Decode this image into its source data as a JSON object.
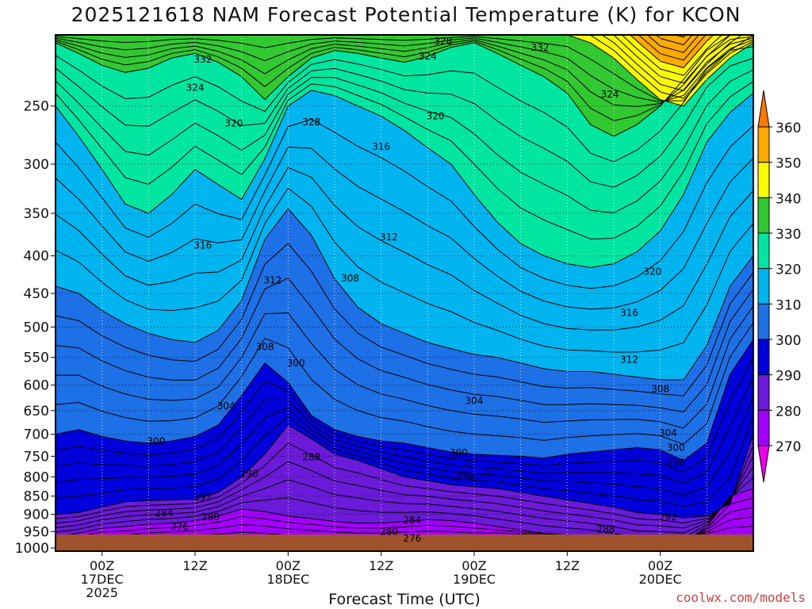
{
  "chart_data": {
    "type": "heatmap",
    "title": "2025121618 NAM Forecast Potential Temperature (K) for KCON",
    "xlabel": "Forecast Time (UTC)",
    "ylabel": "",
    "units": "K",
    "x_range_hours": [
      -6,
      84
    ],
    "y_axis_scale": "log",
    "y_ticks": [
      250,
      300,
      350,
      400,
      450,
      500,
      550,
      600,
      650,
      700,
      750,
      800,
      850,
      900,
      950,
      1000
    ],
    "y_range": [
      200,
      1010
    ],
    "x_ticks": [
      {
        "hour": 0,
        "lines": [
          "00Z",
          "17DEC",
          "2025"
        ]
      },
      {
        "hour": 12,
        "lines": [
          "12Z"
        ]
      },
      {
        "hour": 24,
        "lines": [
          "00Z",
          "18DEC"
        ]
      },
      {
        "hour": 36,
        "lines": [
          "12Z"
        ]
      },
      {
        "hour": 48,
        "lines": [
          "00Z",
          "19DEC"
        ]
      },
      {
        "hour": 60,
        "lines": [
          "12Z"
        ]
      },
      {
        "hour": 72,
        "lines": [
          "00Z",
          "20DEC"
        ]
      }
    ],
    "colorbar": {
      "levels": [
        270,
        280,
        290,
        300,
        310,
        320,
        330,
        340,
        350,
        360
      ],
      "colors": [
        "#ee00ee",
        "#a400ff",
        "#6a1ad8",
        "#0000dd",
        "#1e70e6",
        "#00b4f0",
        "#00e6a0",
        "#32c832",
        "#fafa00",
        "#ffaa00",
        "#ff7800"
      ],
      "extend": "both"
    },
    "contour_interval": 2,
    "contour_labels": [
      {
        "value": "332",
        "t": 13,
        "p": 216
      },
      {
        "value": "328",
        "t": 44,
        "p": 204
      },
      {
        "value": "324",
        "t": 42,
        "p": 214
      },
      {
        "value": "332",
        "t": 56.5,
        "p": 208
      },
      {
        "value": "324",
        "t": 12,
        "p": 236
      },
      {
        "value": "324",
        "t": 65.5,
        "p": 241
      },
      {
        "value": "328",
        "t": 27,
        "p": 263
      },
      {
        "value": "320",
        "t": 17,
        "p": 264
      },
      {
        "value": "320",
        "t": 43,
        "p": 258
      },
      {
        "value": "316",
        "t": 36,
        "p": 284
      },
      {
        "value": "316",
        "t": 13,
        "p": 387
      },
      {
        "value": "312",
        "t": 37,
        "p": 377
      },
      {
        "value": "312",
        "t": 22,
        "p": 432
      },
      {
        "value": "308",
        "t": 32,
        "p": 429
      },
      {
        "value": "320",
        "t": 71,
        "p": 420
      },
      {
        "value": "316",
        "t": 68,
        "p": 478
      },
      {
        "value": "308",
        "t": 21,
        "p": 532
      },
      {
        "value": "300",
        "t": 25,
        "p": 560
      },
      {
        "value": "312",
        "t": 68,
        "p": 554
      },
      {
        "value": "308",
        "t": 72,
        "p": 607
      },
      {
        "value": "304",
        "t": 16,
        "p": 641
      },
      {
        "value": "304",
        "t": 48,
        "p": 630
      },
      {
        "value": "304",
        "t": 73,
        "p": 697
      },
      {
        "value": "300",
        "t": 7,
        "p": 716
      },
      {
        "value": "300",
        "t": 74,
        "p": 730
      },
      {
        "value": "300",
        "t": 46,
        "p": 742
      },
      {
        "value": "288",
        "t": 27,
        "p": 752
      },
      {
        "value": "296",
        "t": 74,
        "p": 765
      },
      {
        "value": "296",
        "t": 19,
        "p": 792
      },
      {
        "value": "296",
        "t": 47,
        "p": 800
      },
      {
        "value": "292",
        "t": 13,
        "p": 853
      },
      {
        "value": "284",
        "t": 8,
        "p": 896
      },
      {
        "value": "280",
        "t": 14,
        "p": 907
      },
      {
        "value": "292",
        "t": 73,
        "p": 907
      },
      {
        "value": "284",
        "t": 40,
        "p": 917
      },
      {
        "value": "276",
        "t": 10,
        "p": 935
      },
      {
        "value": "280",
        "t": 37,
        "p": 950
      },
      {
        "value": "288",
        "t": 65,
        "p": 943
      },
      {
        "value": "276",
        "t": 40,
        "p": 970
      }
    ],
    "series": [
      {
        "isentrope": 270,
        "bottom": true,
        "p": [
          1000,
          1000,
          1000,
          1000,
          995,
          990,
          990,
          995,
          1000,
          1000,
          1000,
          1000,
          1000,
          1000,
          1000,
          1000,
          1000,
          1000,
          1000,
          985,
          975,
          965,
          962,
          960,
          958,
          958,
          960,
          962,
          962,
          962,
          962
        ]
      },
      {
        "isentrope": 280,
        "p": [
          965,
          955,
          940,
          935,
          928,
          925,
          918,
          905,
          885,
          892,
          905,
          912,
          920,
          925,
          925,
          920,
          915,
          918,
          925,
          935,
          945,
          955,
          960,
          965,
          975,
          985,
          985,
          985,
          935,
          850,
          830
        ]
      },
      {
        "isentrope": 290,
        "p": [
          900,
          895,
          880,
          865,
          862,
          860,
          858,
          840,
          800,
          745,
          680,
          710,
          745,
          760,
          780,
          800,
          810,
          820,
          825,
          830,
          840,
          850,
          860,
          870,
          880,
          895,
          900,
          910,
          905,
          870,
          700
        ]
      },
      {
        "isentrope": 300,
        "p": [
          700,
          690,
          705,
          715,
          720,
          715,
          705,
          680,
          620,
          560,
          595,
          660,
          690,
          705,
          715,
          720,
          730,
          740,
          745,
          748,
          750,
          755,
          745,
          740,
          735,
          730,
          735,
          760,
          720,
          580,
          520
        ]
      },
      {
        "isentrope": 310,
        "p": [
          440,
          450,
          475,
          495,
          510,
          520,
          525,
          505,
          460,
          380,
          345,
          375,
          430,
          470,
          495,
          510,
          525,
          535,
          545,
          550,
          560,
          570,
          575,
          575,
          580,
          585,
          590,
          590,
          530,
          440,
          400
        ]
      },
      {
        "isentrope": 320,
        "p": [
          250,
          275,
          305,
          340,
          350,
          330,
          305,
          320,
          335,
          295,
          250,
          238,
          242,
          250,
          258,
          270,
          285,
          300,
          330,
          360,
          385,
          400,
          410,
          415,
          410,
          395,
          370,
          330,
          280,
          255,
          240
        ]
      },
      {
        "isentrope": 330,
        "p": [
          205,
          212,
          220,
          225,
          222,
          215,
          212,
          218,
          228,
          245,
          228,
          215,
          210,
          212,
          215,
          218,
          214,
          208,
          205,
          212,
          220,
          228,
          240,
          265,
          275,
          265,
          250,
          230,
          210,
          200,
          200
        ]
      },
      {
        "isentrope": 340,
        "p": [
          200,
          200,
          200,
          200,
          200,
          200,
          200,
          200,
          200,
          200,
          200,
          200,
          200,
          200,
          200,
          200,
          200,
          200,
          200,
          200,
          200,
          200,
          200,
          205,
          215,
          230,
          245,
          250,
          230,
          215,
          205
        ]
      }
    ],
    "times": [
      -6,
      -3,
      0,
      3,
      6,
      9,
      12,
      15,
      18,
      21,
      24,
      27,
      30,
      33,
      36,
      39,
      42,
      45,
      48,
      51,
      54,
      57,
      60,
      63,
      66,
      69,
      72,
      75,
      78,
      81,
      84
    ]
  },
  "credit": "coolwx.com/models"
}
